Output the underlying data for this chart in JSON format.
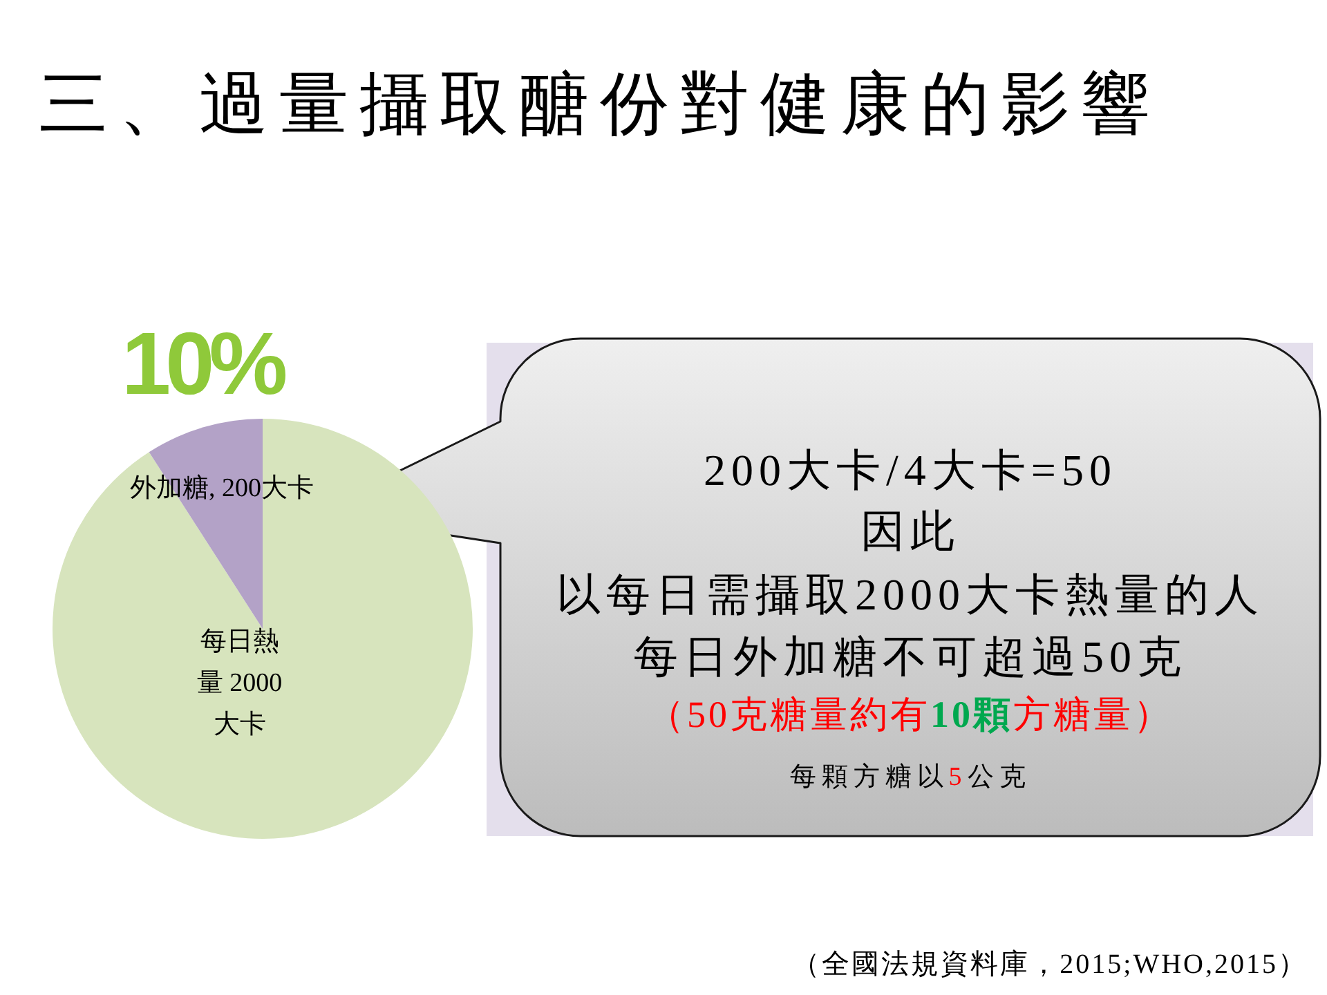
{
  "chart_data": {
    "type": "pie",
    "title": "三、過量攝取醣份對健康的影響",
    "categories": [
      "每日熱量",
      "外加糖"
    ],
    "values": [
      2000,
      200
    ],
    "colors": [
      "#d7e4bd",
      "#b3a2c7"
    ],
    "value_labels": [
      "2000大卡",
      "200大卡"
    ],
    "annotations": [
      "10%",
      "200大卡/4大卡=50",
      "因此",
      "以每日需攝取2000大卡熱量的人",
      "每日外加糖不可超過50克",
      "（50克糖量約有10顆方糖量）",
      "每顆方糖以5公克",
      "（全國法規資料庫，2015;WHO,2015）"
    ]
  }
}
